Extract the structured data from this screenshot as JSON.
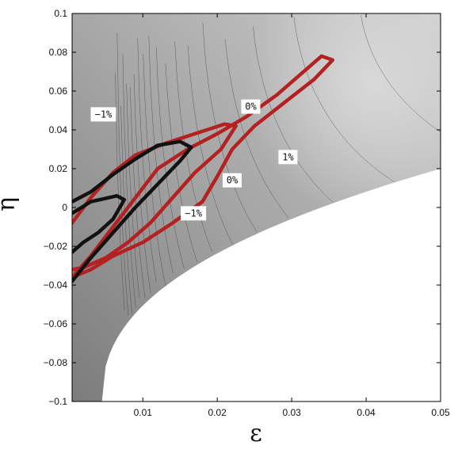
{
  "chart_data": {
    "type": "contour",
    "title": "",
    "xlabel": "ε",
    "ylabel": "η",
    "xlim": [
      0.0005,
      0.05
    ],
    "ylim": [
      -0.1,
      0.1
    ],
    "x_ticks": [
      "0.01",
      "0.02",
      "0.03",
      "0.04",
      "0.05"
    ],
    "y_ticks": [
      "0.1",
      "0.08",
      "0.06",
      "0.04",
      "0.02",
      "0",
      "−0.02",
      "−0.04",
      "−0.06",
      "−0.08",
      "−0.1"
    ],
    "grid": false,
    "contour_labels": [
      {
        "text": "−1%",
        "x": 0.0047,
        "y": 0.048
      },
      {
        "text": "0%",
        "x": 0.0245,
        "y": 0.052
      },
      {
        "text": "1%",
        "x": 0.0295,
        "y": 0.026
      },
      {
        "text": "0%",
        "x": 0.022,
        "y": 0.014
      },
      {
        "text": "−1%",
        "x": 0.0168,
        "y": -0.003
      }
    ],
    "highlight_contours": [
      {
        "color": "#b52020",
        "points": [
          [
            0.0005,
            -0.036
          ],
          [
            0.003,
            -0.025
          ],
          [
            0.006,
            -0.01
          ],
          [
            0.009,
            0.005
          ],
          [
            0.012,
            0.02
          ],
          [
            0.016,
            0.03
          ],
          [
            0.02,
            0.038
          ],
          [
            0.024,
            0.047
          ],
          [
            0.028,
            0.058
          ],
          [
            0.031,
            0.068
          ],
          [
            0.034,
            0.078
          ],
          [
            0.0355,
            0.076
          ],
          [
            0.033,
            0.066
          ],
          [
            0.029,
            0.054
          ],
          [
            0.025,
            0.042
          ],
          [
            0.022,
            0.03
          ],
          [
            0.02,
            0.016
          ],
          [
            0.018,
            0.003
          ],
          [
            0.014,
            -0.008
          ],
          [
            0.01,
            -0.018
          ],
          [
            0.006,
            -0.025
          ],
          [
            0.003,
            -0.032
          ],
          [
            0.0005,
            -0.036
          ]
        ]
      },
      {
        "color": "#b52020",
        "points": [
          [
            0.0005,
            -0.008
          ],
          [
            0.003,
            0.005
          ],
          [
            0.006,
            0.018
          ],
          [
            0.009,
            0.027
          ],
          [
            0.013,
            0.033
          ],
          [
            0.017,
            0.038
          ],
          [
            0.021,
            0.043
          ],
          [
            0.0225,
            0.042
          ],
          [
            0.0205,
            0.03
          ],
          [
            0.017,
            0.018
          ],
          [
            0.014,
            0.005
          ],
          [
            0.011,
            -0.008
          ],
          [
            0.008,
            -0.018
          ],
          [
            0.005,
            -0.026
          ],
          [
            0.002,
            -0.031
          ],
          [
            0.0005,
            -0.032
          ]
        ]
      },
      {
        "color": "#111111",
        "points": [
          [
            0.0005,
            -0.038
          ],
          [
            0.003,
            -0.026
          ],
          [
            0.006,
            -0.013
          ],
          [
            0.009,
            0.0
          ],
          [
            0.012,
            0.012
          ],
          [
            0.015,
            0.024
          ],
          [
            0.0165,
            0.031
          ],
          [
            0.015,
            0.034
          ],
          [
            0.012,
            0.032
          ],
          [
            0.009,
            0.025
          ],
          [
            0.006,
            0.017
          ],
          [
            0.003,
            0.008
          ],
          [
            0.0005,
            0.003
          ]
        ]
      },
      {
        "color": "#111111",
        "points": [
          [
            0.0005,
            -0.003
          ],
          [
            0.003,
            0.003
          ],
          [
            0.0065,
            0.006
          ],
          [
            0.0075,
            0.004
          ],
          [
            0.006,
            -0.006
          ],
          [
            0.004,
            -0.013
          ],
          [
            0.002,
            -0.018
          ],
          [
            0.0005,
            -0.023
          ]
        ]
      }
    ],
    "undefined_region": "white region lower-right below curve η ≈ −0.1 + 0.12·((ε−0.0045)/0.0455)^0.42"
  }
}
